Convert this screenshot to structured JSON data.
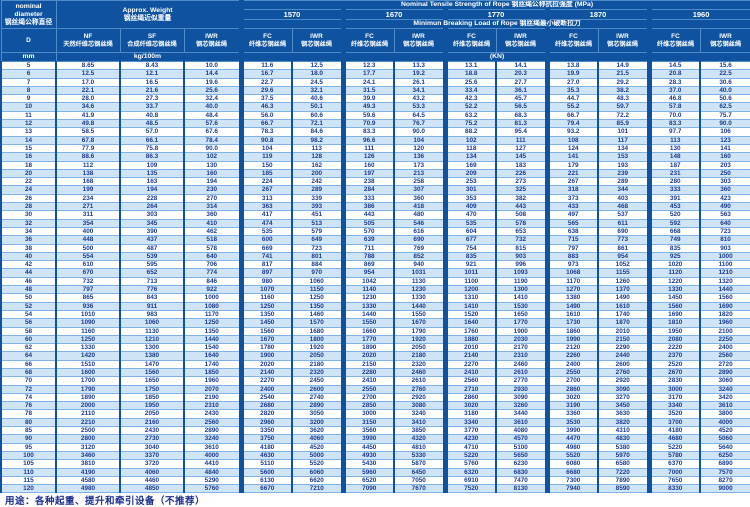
{
  "colors": {
    "background_blue": "#0f53a0",
    "row_alt_blue": "#cfe4f6",
    "text_navy": "#1b3a8e"
  },
  "table": {
    "corner": {
      "diameter": {
        "en": "nominal diameter",
        "zh": "钢丝绳公称直径"
      },
      "weight": {
        "en": "Approx. Weight",
        "zh": "钢丝绳近似重量"
      }
    },
    "strength_title": "Nominal Tensile Strength of Rope 钢丝绳公称抗拉强度 (MPa)",
    "strength_values": [
      "1570",
      "1670",
      "1770",
      "1870",
      "1960"
    ],
    "breaking_title": "Minimun Breaking Load of Rope 钢丝绳最小破断拉力",
    "col_headers": {
      "d": "D",
      "nf": {
        "code": "NF",
        "zh": "天然纤维芯钢丝绳"
      },
      "sf": {
        "code": "SF",
        "zh": "合成纤维芯钢丝绳"
      },
      "iwr_weight": {
        "code": "IWR",
        "zh": "钢芯钢丝绳"
      },
      "fc": {
        "code": "FC",
        "zh": "纤维芯钢丝绳"
      },
      "iwr": {
        "code": "IWR",
        "zh": "钢芯钢丝绳"
      }
    },
    "units": {
      "d": "mm",
      "weight": "kg/100m",
      "load": "(KN)"
    },
    "columns": [
      "D",
      "NF",
      "SF",
      "IWR",
      "FC 1570",
      "IWR 1570",
      "FC 1670",
      "IWR 1670",
      "FC 1770",
      "IWR 1770",
      "FC 1870",
      "IWR 1870",
      "FC 1960",
      "IWR 1960"
    ],
    "rows": [
      [
        "5",
        "8.65",
        "8.43",
        "10.0",
        "11.6",
        "12.5",
        "12.3",
        "13.3",
        "13.1",
        "14.1",
        "13.8",
        "14.9",
        "14.5",
        "15.6"
      ],
      [
        "6",
        "12.5",
        "12.1",
        "14.4",
        "16.7",
        "18.0",
        "17.7",
        "19.2",
        "18.8",
        "20.3",
        "19.9",
        "21.5",
        "20.8",
        "22.5"
      ],
      [
        "7",
        "17.0",
        "16.5",
        "19.6",
        "22.7",
        "24.5",
        "24.1",
        "26.1",
        "25.6",
        "27.7",
        "27.0",
        "29.2",
        "28.3",
        "30.6"
      ],
      [
        "8",
        "22.1",
        "21.6",
        "25.6",
        "29.6",
        "32.1",
        "31.5",
        "34.1",
        "33.4",
        "36.1",
        "35.3",
        "38.2",
        "37.0",
        "40.0"
      ],
      [
        "9",
        "28.0",
        "27.3",
        "32.4",
        "37.5",
        "40.6",
        "39.9",
        "43.2",
        "42.3",
        "45.7",
        "44.7",
        "48.3",
        "46.8",
        "50.6"
      ],
      [
        "10",
        "34.6",
        "33.7",
        "40.0",
        "46.3",
        "50.1",
        "49.3",
        "53.3",
        "52.2",
        "56.5",
        "55.2",
        "59.7",
        "57.8",
        "62.5"
      ],
      [
        "11",
        "41.9",
        "40.8",
        "48.4",
        "56.0",
        "60.6",
        "59.6",
        "64.5",
        "63.2",
        "68.3",
        "66.7",
        "72.2",
        "70.0",
        "75.7"
      ],
      [
        "12",
        "49.8",
        "48.5",
        "57.6",
        "66.7",
        "72.1",
        "70.9",
        "76.7",
        "75.2",
        "81.3",
        "79.4",
        "85.9",
        "83.3",
        "90.0"
      ],
      [
        "13",
        "58.5",
        "57.0",
        "67.6",
        "78.3",
        "84.6",
        "83.3",
        "90.0",
        "88.2",
        "95.4",
        "93.2",
        "101",
        "97.7",
        "106"
      ],
      [
        "14",
        "67.8",
        "66.1",
        "78.4",
        "90.8",
        "98.2",
        "96.6",
        "104",
        "102",
        "111",
        "108",
        "117",
        "113",
        "123"
      ],
      [
        "15",
        "77.9",
        "75.8",
        "90.0",
        "104",
        "113",
        "111",
        "120",
        "118",
        "127",
        "124",
        "134",
        "130",
        "141"
      ],
      [
        "16",
        "88.6",
        "86.3",
        "102",
        "119",
        "128",
        "126",
        "136",
        "134",
        "145",
        "141",
        "153",
        "148",
        "160"
      ],
      [
        "18",
        "112",
        "109",
        "130",
        "150",
        "162",
        "160",
        "173",
        "169",
        "183",
        "179",
        "193",
        "187",
        "203"
      ],
      [
        "20",
        "138",
        "135",
        "160",
        "185",
        "200",
        "197",
        "213",
        "209",
        "226",
        "221",
        "239",
        "231",
        "250"
      ],
      [
        "22",
        "168",
        "163",
        "194",
        "224",
        "242",
        "238",
        "258",
        "253",
        "273",
        "267",
        "289",
        "280",
        "303"
      ],
      [
        "24",
        "199",
        "194",
        "230",
        "267",
        "289",
        "284",
        "307",
        "301",
        "325",
        "318",
        "344",
        "333",
        "360"
      ],
      [
        "26",
        "234",
        "228",
        "270",
        "313",
        "339",
        "333",
        "360",
        "353",
        "382",
        "373",
        "403",
        "391",
        "423"
      ],
      [
        "28",
        "271",
        "264",
        "314",
        "363",
        "393",
        "386",
        "418",
        "409",
        "443",
        "433",
        "468",
        "453",
        "490"
      ],
      [
        "30",
        "311",
        "303",
        "360",
        "417",
        "451",
        "443",
        "480",
        "470",
        "508",
        "497",
        "537",
        "520",
        "563"
      ],
      [
        "32",
        "354",
        "345",
        "410",
        "474",
        "513",
        "505",
        "546",
        "535",
        "578",
        "565",
        "611",
        "592",
        "640"
      ],
      [
        "34",
        "400",
        "390",
        "462",
        "535",
        "579",
        "570",
        "616",
        "604",
        "653",
        "638",
        "690",
        "668",
        "723"
      ],
      [
        "36",
        "448",
        "437",
        "518",
        "600",
        "649",
        "639",
        "690",
        "677",
        "732",
        "715",
        "773",
        "749",
        "810"
      ],
      [
        "38",
        "500",
        "487",
        "578",
        "669",
        "723",
        "711",
        "769",
        "754",
        "815",
        "797",
        "861",
        "835",
        "903"
      ],
      [
        "40",
        "554",
        "539",
        "640",
        "741",
        "801",
        "788",
        "852",
        "835",
        "903",
        "883",
        "954",
        "925",
        "1000"
      ],
      [
        "42",
        "610",
        "595",
        "706",
        "817",
        "884",
        "869",
        "940",
        "921",
        "996",
        "973",
        "1052",
        "1020",
        "1100"
      ],
      [
        "44",
        "670",
        "652",
        "774",
        "897",
        "970",
        "954",
        "1031",
        "1011",
        "1093",
        "1068",
        "1155",
        "1120",
        "1210"
      ],
      [
        "46",
        "732",
        "713",
        "846",
        "980",
        "1060",
        "1042",
        "1130",
        "1100",
        "1190",
        "1170",
        "1260",
        "1220",
        "1320"
      ],
      [
        "48",
        "797",
        "776",
        "922",
        "1070",
        "1150",
        "1140",
        "1230",
        "1200",
        "1300",
        "1270",
        "1370",
        "1330",
        "1440"
      ],
      [
        "50",
        "865",
        "843",
        "1000",
        "1160",
        "1250",
        "1230",
        "1330",
        "1310",
        "1410",
        "1380",
        "1490",
        "1450",
        "1560"
      ],
      [
        "52",
        "936",
        "911",
        "1080",
        "1250",
        "1350",
        "1330",
        "1440",
        "1410",
        "1530",
        "1490",
        "1610",
        "1560",
        "1690"
      ],
      [
        "54",
        "1010",
        "983",
        "1170",
        "1350",
        "1460",
        "1440",
        "1550",
        "1520",
        "1650",
        "1610",
        "1740",
        "1690",
        "1820"
      ],
      [
        "56",
        "1090",
        "1060",
        "1250",
        "1450",
        "1570",
        "1550",
        "1670",
        "1640",
        "1770",
        "1730",
        "1870",
        "1810",
        "1960"
      ],
      [
        "58",
        "1160",
        "1130",
        "1350",
        "1560",
        "1680",
        "1660",
        "1790",
        "1760",
        "1900",
        "1860",
        "2010",
        "1950",
        "2100"
      ],
      [
        "60",
        "1250",
        "1210",
        "1440",
        "1670",
        "1800",
        "1770",
        "1920",
        "1880",
        "2030",
        "1990",
        "2150",
        "2080",
        "2250"
      ],
      [
        "62",
        "1330",
        "1300",
        "1540",
        "1780",
        "1920",
        "1890",
        "2050",
        "2010",
        "2170",
        "2120",
        "2290",
        "2220",
        "2400"
      ],
      [
        "64",
        "1420",
        "1380",
        "1640",
        "1900",
        "2050",
        "2020",
        "2180",
        "2140",
        "2310",
        "2260",
        "2440",
        "2370",
        "2560"
      ],
      [
        "66",
        "1510",
        "1470",
        "1740",
        "2020",
        "2180",
        "2150",
        "2320",
        "2270",
        "2460",
        "2400",
        "2600",
        "2520",
        "2720"
      ],
      [
        "68",
        "1600",
        "1560",
        "1850",
        "2140",
        "2320",
        "2280",
        "2460",
        "2410",
        "2610",
        "2550",
        "2760",
        "2670",
        "2890"
      ],
      [
        "70",
        "1700",
        "1650",
        "1960",
        "2270",
        "2450",
        "2410",
        "2610",
        "2560",
        "2770",
        "2700",
        "2920",
        "2830",
        "3060"
      ],
      [
        "72",
        "1790",
        "1750",
        "2070",
        "2400",
        "2600",
        "2550",
        "2760",
        "2710",
        "2930",
        "2860",
        "3090",
        "3000",
        "3240"
      ],
      [
        "74",
        "1890",
        "1850",
        "2190",
        "2540",
        "2740",
        "2700",
        "2920",
        "2860",
        "3090",
        "3020",
        "3270",
        "3170",
        "3420"
      ],
      [
        "76",
        "2000",
        "1950",
        "2310",
        "2680",
        "2890",
        "2850",
        "3080",
        "3020",
        "3260",
        "3190",
        "3450",
        "3340",
        "3610"
      ],
      [
        "78",
        "2110",
        "2050",
        "2430",
        "2820",
        "3050",
        "3000",
        "3240",
        "3180",
        "3440",
        "3360",
        "3630",
        "3520",
        "3800"
      ],
      [
        "80",
        "2210",
        "2160",
        "2560",
        "2960",
        "3200",
        "3150",
        "3410",
        "3340",
        "3610",
        "3530",
        "3820",
        "3700",
        "4000"
      ],
      [
        "85",
        "2500",
        "2430",
        "2890",
        "3350",
        "3620",
        "3560",
        "3850",
        "3770",
        "4080",
        "3990",
        "4310",
        "4180",
        "4520"
      ],
      [
        "90",
        "2800",
        "2730",
        "3240",
        "3750",
        "4060",
        "3990",
        "4320",
        "4230",
        "4570",
        "4470",
        "4830",
        "4680",
        "5060"
      ],
      [
        "95",
        "3120",
        "3040",
        "3610",
        "4180",
        "4520",
        "4450",
        "4810",
        "4710",
        "5100",
        "4980",
        "5380",
        "5220",
        "5640"
      ],
      [
        "100",
        "3460",
        "3370",
        "4000",
        "4630",
        "5000",
        "4930",
        "5330",
        "5220",
        "5650",
        "5520",
        "5970",
        "5780",
        "6250"
      ],
      [
        "105",
        "3810",
        "3720",
        "4410",
        "5110",
        "5520",
        "5430",
        "5870",
        "5760",
        "6230",
        "6080",
        "6580",
        "6370",
        "6890"
      ],
      [
        "110",
        "4190",
        "4060",
        "4840",
        "5600",
        "6060",
        "5960",
        "6450",
        "6320",
        "6830",
        "6680",
        "7220",
        "7000",
        "7570"
      ],
      [
        "115",
        "4580",
        "4460",
        "5290",
        "6130",
        "6620",
        "6520",
        "7050",
        "6910",
        "7470",
        "7300",
        "7890",
        "7650",
        "8270"
      ],
      [
        "120",
        "4980",
        "4850",
        "5760",
        "6670",
        "7210",
        "7090",
        "7670",
        "7520",
        "8130",
        "7940",
        "8590",
        "8330",
        "9000"
      ]
    ]
  },
  "footer": "用途：各种起重、提升和牵引设备（不推荐）"
}
